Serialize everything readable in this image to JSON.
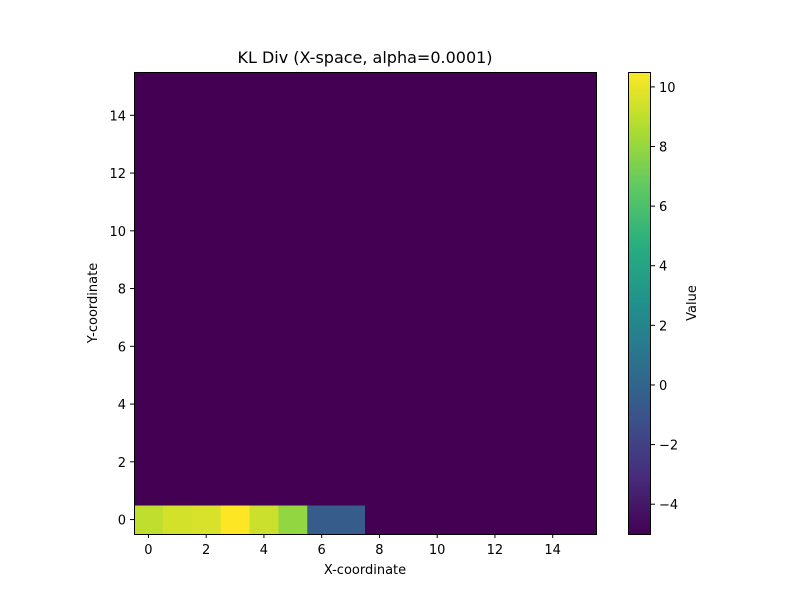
{
  "chart_data": {
    "type": "heatmap",
    "title": "KL Div (X-space, alpha=0.0001)",
    "xlabel": "X-coordinate",
    "ylabel": "Y-coordinate",
    "colorbar_label": "Value",
    "colormap": "viridis",
    "grid": false,
    "x_ticks": [
      0,
      2,
      4,
      6,
      8,
      10,
      12,
      14
    ],
    "y_ticks": [
      0,
      2,
      4,
      6,
      8,
      10,
      12,
      14
    ],
    "colorbar_ticks": [
      -4,
      -2,
      0,
      2,
      4,
      6,
      8,
      10
    ],
    "xlim": [
      -0.5,
      15.5
    ],
    "ylim": [
      -0.5,
      15.5
    ],
    "value_range": [
      -5.0,
      10.5
    ],
    "grid_size": [
      16,
      16
    ],
    "background_value": -5.0,
    "highlighted_cells": [
      {
        "x": 0,
        "y": 0,
        "value": 9.0
      },
      {
        "x": 1,
        "y": 0,
        "value": 9.5
      },
      {
        "x": 2,
        "y": 0,
        "value": 9.6
      },
      {
        "x": 3,
        "y": 0,
        "value": 10.5
      },
      {
        "x": 4,
        "y": 0,
        "value": 9.3
      },
      {
        "x": 5,
        "y": 0,
        "value": 7.9
      },
      {
        "x": 6,
        "y": 0,
        "value": -0.5
      },
      {
        "x": 7,
        "y": 0,
        "value": -0.5
      }
    ]
  }
}
